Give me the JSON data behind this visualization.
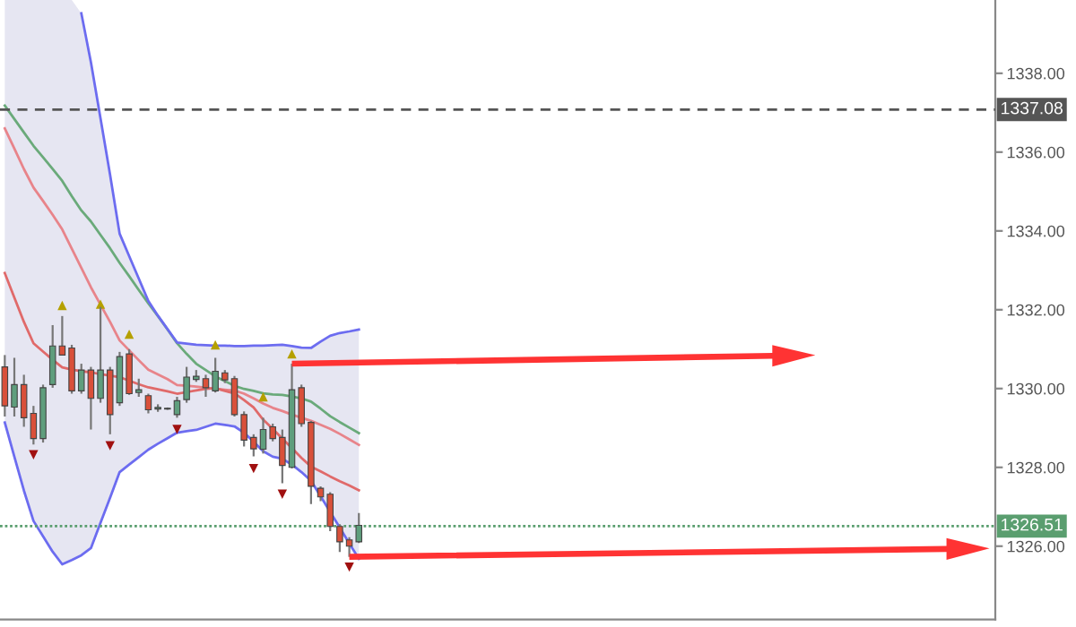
{
  "chart_data": {
    "type": "candlestick",
    "categories": [
      null,
      null,
      null,
      null,
      null,
      null,
      null,
      null,
      null,
      null,
      null,
      null,
      null,
      null,
      null,
      null,
      null,
      null,
      null,
      null,
      null,
      null,
      null,
      null,
      null,
      null,
      null,
      null,
      null,
      null,
      null,
      null,
      null,
      null,
      null,
      null,
      null,
      null,
      null,
      null,
      null,
      null,
      null,
      null,
      null,
      null,
      null,
      null,
      null,
      null,
      null,
      null,
      null,
      null,
      null,
      null,
      null,
      null,
      null,
      null,
      null,
      null,
      null,
      null,
      null,
      null,
      null,
      null,
      null,
      null,
      null,
      null,
      null,
      null,
      null,
      null,
      null,
      null,
      null,
      null,
      null,
      null,
      null,
      null,
      null,
      null,
      null,
      null,
      null,
      null,
      null,
      null,
      null,
      null,
      null,
      null,
      null,
      null,
      null,
      null,
      null,
      null,
      null,
      null
    ],
    "ohlc": [
      [
        1330.55,
        1330.85,
        1329.29,
        1329.56
      ],
      [
        1329.53,
        1330.78,
        1329.29,
        1330.1
      ],
      [
        1330.1,
        1330.35,
        1329.03,
        1329.26
      ],
      [
        1329.37,
        1329.56,
        1328.58,
        1328.73
      ],
      [
        1328.73,
        1330.1,
        1328.63,
        1330.02
      ],
      [
        1330.1,
        1331.61,
        1330.02,
        1331.08
      ],
      [
        1331.08,
        1331.84,
        1330.85,
        1330.85
      ],
      [
        1331.03,
        1331.11,
        1329.87,
        1329.94
      ],
      [
        1329.94,
        1330.63,
        1329.87,
        1330.47
      ],
      [
        1330.47,
        1330.55,
        1328.96,
        1329.75
      ],
      [
        1329.75,
        1332.07,
        1329.64,
        1330.47
      ],
      [
        1330.47,
        1330.55,
        1328.84,
        1329.34
      ],
      [
        1329.64,
        1330.93,
        1329.56,
        1330.81
      ],
      [
        1330.88,
        1331.0,
        1329.84,
        1329.87
      ],
      [
        1329.9,
        1330.25,
        1329.79,
        1329.97
      ],
      [
        1329.82,
        1329.87,
        1329.37,
        1329.46
      ],
      [
        1329.48,
        1329.6,
        1329.41,
        1329.52
      ],
      [
        1329.48,
        1329.52,
        1329.46,
        1329.5
      ],
      [
        1329.34,
        1329.79,
        1329.26,
        1329.69
      ],
      [
        1329.72,
        1330.55,
        1329.64,
        1330.29
      ],
      [
        1330.23,
        1330.47,
        1330.17,
        1330.31
      ],
      [
        1330.25,
        1330.35,
        1329.79,
        1330.02
      ],
      [
        1329.94,
        1330.78,
        1329.9,
        1330.44
      ],
      [
        1330.4,
        1330.47,
        1330.14,
        1330.22
      ],
      [
        1330.25,
        1330.32,
        1329.29,
        1329.34
      ],
      [
        1329.34,
        1329.42,
        1328.53,
        1328.69
      ],
      [
        1328.76,
        1328.84,
        1328.28,
        1328.47
      ],
      [
        1328.46,
        1329.26,
        1328.35,
        1328.96
      ],
      [
        1329.03,
        1329.11,
        1328.66,
        1328.73
      ],
      [
        1328.76,
        1328.96,
        1327.6,
        1328.05
      ],
      [
        1328.0,
        1330.63,
        1327.97,
        1329.97
      ],
      [
        1330.02,
        1330.1,
        1329.03,
        1329.11
      ],
      [
        1329.14,
        1329.18,
        1327.07,
        1327.52
      ],
      [
        1327.47,
        1327.52,
        1327.14,
        1327.25
      ],
      [
        1327.32,
        1327.37,
        1326.38,
        1326.5
      ],
      [
        1326.5,
        1326.56,
        1325.85,
        1326.11
      ],
      [
        1326.16,
        1326.23,
        1325.73,
        1326.0
      ],
      [
        1326.11,
        1326.84,
        1326.08,
        1326.53
      ],
      null,
      null,
      null,
      null,
      null,
      null,
      null,
      null,
      null,
      null,
      null,
      null,
      null,
      null,
      null,
      null,
      null,
      null,
      null,
      null,
      null,
      null,
      null,
      null,
      null,
      null,
      null,
      null,
      null,
      null,
      null,
      null,
      null,
      null,
      null,
      null,
      null,
      null,
      null,
      null,
      null,
      null,
      null,
      null,
      null,
      null,
      null,
      null,
      null,
      null,
      null,
      null,
      null,
      null,
      null,
      null,
      null,
      null,
      null,
      null,
      null,
      null,
      null,
      null,
      null,
      null
    ],
    "colors": [
      "#d9503a",
      "#5f9e7d",
      "#d9503a",
      "#d9503a",
      "#5f9e7d",
      "#5f9e7d",
      "#d9503a",
      "#d9503a",
      "#5f9e7d",
      "#d9503a",
      "#5f9e7d",
      "#d9503a",
      "#5f9e7d",
      "#d9503a",
      "#5f9e7d",
      "#d9503a",
      "#5f9e7d",
      "#5f9e7d",
      "#5f9e7d",
      "#5f9e7d",
      "#5f9e7d",
      "#d9503a",
      "#5f9e7d",
      "#d9503a",
      "#d9503a",
      "#d9503a",
      "#d9503a",
      "#5f9e7d",
      "#d9503a",
      "#d9503a",
      "#5f9e7d",
      "#d9503a",
      "#d9503a",
      "#d9503a",
      "#d9503a",
      "#d9503a",
      "#d9503a",
      "#5f9e7d",
      null,
      null,
      null,
      null,
      null,
      null,
      null,
      null,
      null,
      null,
      null,
      null,
      null,
      null,
      null,
      null,
      null,
      null,
      null,
      null,
      null,
      null,
      null,
      null,
      null,
      null,
      null,
      null,
      null,
      null,
      null,
      null,
      null,
      null,
      null,
      null,
      null,
      null,
      null,
      null,
      null,
      null,
      null,
      null,
      null,
      null,
      null,
      null,
      null,
      null,
      null,
      null,
      null,
      null,
      null,
      null,
      null,
      null,
      null,
      null,
      null,
      null,
      null,
      null,
      null,
      null
    ],
    "series": [
      {
        "type": "line",
        "color": "#6aaa7a",
        "values": [
          1337.18,
          1336.84,
          1336.5,
          1336.16,
          1335.87,
          1335.57,
          1335.27,
          1334.88,
          1334.52,
          1334.24,
          1333.9,
          1333.56,
          1333.19,
          1332.85,
          1332.5,
          1332.16,
          1331.84,
          1331.5,
          1331.15,
          1330.88,
          1330.63,
          1330.47,
          1330.31,
          1330.19,
          1330.07,
          1329.99,
          1329.94,
          1329.88,
          1329.85,
          1329.84,
          1329.8,
          1329.75,
          1329.67,
          1329.49,
          1329.3,
          1329.15,
          1329.01,
          1328.87,
          null,
          null,
          null,
          null,
          null,
          null,
          null,
          null,
          null,
          null,
          null,
          null,
          null,
          null,
          null,
          null,
          null,
          null,
          null,
          null,
          null,
          null,
          null,
          null,
          null,
          null,
          null,
          null,
          null,
          null,
          null,
          null,
          null,
          null,
          null,
          null,
          null,
          null,
          null,
          null,
          null,
          null,
          null,
          null,
          null,
          null,
          null,
          null,
          null,
          null,
          null,
          null,
          null,
          null,
          null,
          null,
          null,
          null,
          null,
          null,
          null,
          null,
          null,
          null,
          null,
          null
        ],
        "lower": [
          1329.14,
          1328.27,
          1327.41,
          1326.64,
          1326.25,
          1325.86,
          1325.54,
          1325.65,
          1325.77,
          1325.95,
          1326.59,
          1327.23,
          1327.88,
          1328.07,
          1328.26,
          1328.45,
          1328.6,
          1328.74,
          1328.88,
          1328.92,
          1328.95,
          1329.03,
          1329.11,
          1329.08,
          1329.04,
          1328.88,
          1328.65,
          1328.41,
          1328.27,
          1328.22,
          1328.07,
          1327.88,
          1327.66,
          1327.27,
          1326.87,
          1326.47,
          1326.07,
          1325.68,
          null,
          null,
          null,
          null,
          null,
          null,
          null,
          null,
          null,
          null,
          null,
          null,
          null,
          null,
          null,
          null,
          null,
          null,
          null,
          null,
          null,
          null,
          null,
          null,
          null,
          null,
          null,
          null,
          null,
          null,
          null,
          null,
          null,
          null,
          null,
          null,
          null,
          null,
          null,
          null,
          null,
          null,
          null,
          null,
          null,
          null,
          null,
          null,
          null,
          null,
          null,
          null,
          null,
          null,
          null,
          null,
          null,
          null,
          null,
          null,
          null,
          null,
          null,
          null,
          null,
          null
        ],
        "upper": [
          1339.86,
          1339.86,
          1339.86,
          1339.86,
          1339.86,
          1339.86,
          1339.86,
          1339.86,
          1339.52,
          1338.28,
          1336.86,
          1335.43,
          1333.93,
          1333.36,
          1332.79,
          1332.22,
          1331.85,
          1331.51,
          1331.17,
          1331.14,
          1331.11,
          1331.1,
          1331.09,
          1331.09,
          1331.08,
          1331.08,
          1331.09,
          1331.09,
          1331.1,
          1331.11,
          1331.08,
          1331.04,
          1331.03,
          1331.19,
          1331.34,
          1331.41,
          1331.45,
          1331.5,
          null,
          null,
          null,
          null,
          null,
          null,
          null,
          null,
          null,
          null,
          null,
          null,
          null,
          null,
          null,
          null,
          null,
          null,
          null,
          null,
          null,
          null,
          null,
          null,
          null,
          null,
          null,
          null,
          null,
          null,
          null,
          null,
          null,
          null,
          null,
          null,
          null,
          null,
          null,
          null,
          null,
          null,
          null,
          null,
          null,
          null,
          null,
          null,
          null,
          null,
          null,
          null,
          null,
          null,
          null,
          null,
          null,
          null,
          null,
          null,
          null,
          null,
          null,
          null,
          null,
          null
        ]
      },
      {
        "type": "line",
        "color": "#6c6cf0",
        "values": [
          null,
          null,
          null,
          null,
          null,
          null,
          null,
          null,
          1339.52,
          1338.28,
          1336.86,
          1335.43,
          1333.93,
          1333.36,
          1332.79,
          1332.22,
          1331.85,
          1331.51,
          1331.17,
          1331.14,
          1331.11,
          1331.1,
          1331.09,
          1331.09,
          1331.08,
          1331.08,
          1331.09,
          1331.09,
          1331.1,
          1331.11,
          1331.08,
          1331.04,
          1331.03,
          1331.19,
          1331.34,
          1331.41,
          1331.45,
          1331.5,
          null,
          null,
          null,
          null,
          null,
          null,
          null,
          null,
          null,
          null,
          null,
          null,
          null,
          null,
          null,
          null,
          null,
          null,
          null,
          null,
          null,
          null,
          null,
          null,
          null,
          null,
          null,
          null,
          null,
          null,
          null,
          null,
          null,
          null,
          null,
          null,
          null,
          null,
          null,
          null,
          null,
          null,
          null,
          null,
          null,
          null,
          null,
          null,
          null,
          null,
          null,
          null,
          null,
          null,
          null,
          null,
          null,
          null,
          null,
          null,
          null,
          null,
          null,
          null,
          null,
          null
        ]
      },
      {
        "type": "line",
        "color": "#6c6cf0",
        "values": [
          1329.14,
          1328.27,
          1327.41,
          1326.64,
          1326.25,
          1325.86,
          1325.54,
          1325.65,
          1325.77,
          1325.95,
          1326.59,
          1327.23,
          1327.88,
          1328.07,
          1328.26,
          1328.45,
          1328.6,
          1328.74,
          1328.88,
          1328.92,
          1328.95,
          1329.03,
          1329.11,
          1329.08,
          1329.04,
          1328.88,
          1328.65,
          1328.41,
          1328.27,
          1328.22,
          1328.07,
          1327.88,
          1327.66,
          1327.27,
          1326.87,
          1326.47,
          1326.07,
          1325.68,
          null,
          null,
          null,
          null,
          null,
          null,
          null,
          null,
          null,
          null,
          null,
          null,
          null,
          null,
          null,
          null,
          null,
          null,
          null,
          null,
          null,
          null,
          null,
          null,
          null,
          null,
          null,
          null,
          null,
          null,
          null,
          null,
          null,
          null,
          null,
          null,
          null,
          null,
          null,
          null,
          null,
          null,
          null,
          null,
          null,
          null,
          null,
          null,
          null,
          null,
          null,
          null,
          null,
          null,
          null,
          null,
          null,
          null,
          null,
          null,
          null,
          null,
          null,
          null,
          null,
          null
        ]
      },
      {
        "type": "line",
        "color": "#e8848a",
        "values": [
          1336.6,
          1336.09,
          1335.57,
          1335.1,
          1334.76,
          1334.41,
          1334.04,
          1333.55,
          1333.06,
          1332.57,
          1332.13,
          1331.69,
          1331.22,
          1330.97,
          1330.72,
          1330.48,
          1330.36,
          1330.24,
          1330.09,
          1330.07,
          1330.05,
          1330.02,
          1329.99,
          1329.97,
          1329.95,
          1329.87,
          1329.75,
          1329.62,
          1329.51,
          1329.43,
          1329.34,
          1329.26,
          1329.18,
          1329.08,
          1328.98,
          1328.85,
          1328.71,
          1328.57,
          null,
          null,
          null,
          null,
          null,
          null,
          null,
          null,
          null,
          null,
          null,
          null,
          null,
          null,
          null,
          null,
          null,
          null,
          null,
          null,
          null,
          null,
          null,
          null,
          null,
          null,
          null,
          null,
          null,
          null,
          null,
          null,
          null,
          null,
          null,
          null,
          null,
          null,
          null,
          null,
          null,
          null,
          null,
          null,
          null,
          null,
          null,
          null,
          null,
          null,
          null,
          null,
          null,
          null,
          null,
          null,
          null,
          null,
          null,
          null,
          null,
          null,
          null,
          null,
          null,
          null
        ]
      },
      {
        "type": "line",
        "color": "#e06a6a",
        "values": [
          1332.93,
          1332.31,
          1331.69,
          1331.15,
          1330.94,
          1330.73,
          1330.54,
          1330.48,
          1330.44,
          1330.41,
          1330.37,
          1330.33,
          1330.29,
          1330.2,
          1330.11,
          1330.03,
          1329.98,
          1329.93,
          1329.87,
          1329.91,
          1329.95,
          1329.99,
          1330.01,
          1329.94,
          1329.88,
          1329.71,
          1329.52,
          1329.21,
          1328.98,
          1328.73,
          1328.49,
          1328.24,
          1328.02,
          1327.9,
          1327.77,
          1327.65,
          1327.54,
          1327.42,
          null,
          null,
          null,
          null,
          null,
          null,
          null,
          null,
          null,
          null,
          null,
          null,
          null,
          null,
          null,
          null,
          null,
          null,
          null,
          null,
          null,
          null,
          null,
          null,
          null,
          null,
          null,
          null,
          null,
          null,
          null,
          null,
          null,
          null,
          null,
          null,
          null,
          null,
          null,
          null,
          null,
          null,
          null,
          null,
          null,
          null,
          null,
          null,
          null,
          null,
          null,
          null,
          null,
          null,
          null,
          null,
          null,
          null,
          null,
          null,
          null,
          null,
          null,
          null,
          null,
          null
        ]
      },
      {
        "type": "scatter",
        "marker": "triangle",
        "color": "#b5a000",
        "values": [
          null,
          null,
          null,
          null,
          null,
          null,
          1332.11,
          null,
          null,
          null,
          1332.14,
          null,
          null,
          1331.38,
          null,
          null,
          null,
          null,
          null,
          null,
          null,
          null,
          1331.11,
          null,
          null,
          null,
          null,
          1329.79,
          null,
          null,
          1330.88,
          null,
          null,
          null,
          null,
          null,
          null,
          null,
          null,
          null,
          null,
          null,
          null,
          null,
          null,
          null,
          null,
          null,
          null,
          null,
          null,
          null,
          null,
          null,
          null,
          null,
          null,
          null,
          null,
          null,
          null,
          null,
          null,
          null,
          null,
          null,
          null,
          null,
          null,
          null,
          null,
          null,
          null,
          null,
          null,
          null,
          null,
          null,
          null,
          null,
          null,
          null,
          null,
          null,
          null,
          null,
          null,
          null,
          null,
          null,
          null,
          null,
          null,
          null,
          null,
          null,
          null,
          null,
          null,
          null,
          null,
          null,
          null,
          null
        ]
      },
      {
        "type": "scatter",
        "marker": "triangle_down",
        "color": "#a01010",
        "values": [
          null,
          null,
          null,
          1328.32,
          null,
          null,
          null,
          null,
          null,
          null,
          null,
          1328.55,
          null,
          null,
          null,
          null,
          null,
          null,
          1328.96,
          null,
          null,
          null,
          null,
          null,
          null,
          null,
          1327.97,
          null,
          null,
          1327.32,
          null,
          null,
          null,
          null,
          null,
          null,
          1325.47,
          null,
          null,
          null,
          null,
          null,
          null,
          null,
          null,
          null,
          null,
          null,
          null,
          null,
          null,
          null,
          null,
          null,
          null,
          null,
          null,
          null,
          null,
          null,
          null,
          null,
          null,
          null,
          null,
          null,
          null,
          null,
          null,
          null,
          null,
          null,
          null,
          null,
          null,
          null,
          null,
          null,
          null,
          null,
          null,
          null,
          null,
          null,
          null,
          null,
          null,
          null,
          null,
          null,
          null,
          null,
          null,
          null,
          null,
          null,
          null,
          null,
          null,
          null,
          null,
          null,
          null,
          null
        ]
      }
    ],
    "ylim": [
      1324.14,
      1339.86
    ],
    "yticks": [
      {
        "value": 1326,
        "label": "1326.00"
      },
      {
        "value": 1328,
        "label": "1328.00"
      },
      {
        "value": 1330,
        "label": "1330.00"
      },
      {
        "value": 1332,
        "label": "1332.00"
      },
      {
        "value": 1334,
        "label": "1334.00"
      },
      {
        "value": 1336,
        "label": "1336.00"
      },
      {
        "value": 1338,
        "label": "1338.00"
      }
    ],
    "ref_lines": [
      {
        "axis": "y",
        "value": 1337.08,
        "label": "1337.08",
        "color": "#555555",
        "line_style": "dashed"
      },
      {
        "axis": "y",
        "value": 1326.51,
        "label": "1326.51",
        "color": "#5a9e6f",
        "line_style": "dotted"
      }
    ],
    "tick_labels": "y"
  }
}
